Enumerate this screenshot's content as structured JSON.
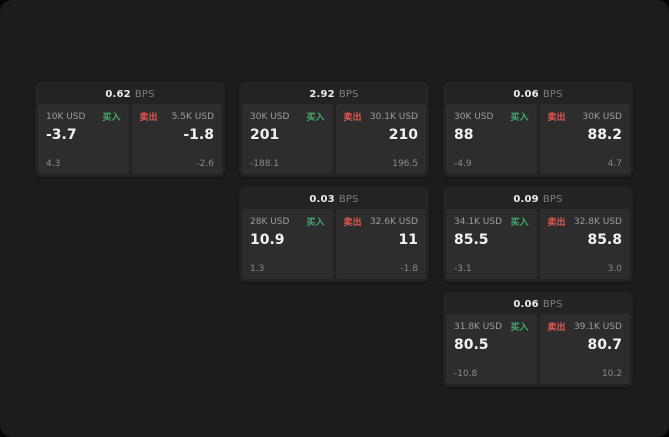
{
  "labels": {
    "bps": "BPS",
    "buy": "买入",
    "sell": "卖出"
  },
  "colors": {
    "buy_green": "#3fae6a",
    "sell_red": "#e05a52",
    "frame_bg": "#1c1c1c",
    "card_bg": "#232323",
    "panel_bg": "#2d2d2d"
  },
  "cards": [
    {
      "bps": "0.62",
      "buy": {
        "amount": "10K USD",
        "price": "-3.7",
        "delta": "4.3"
      },
      "sell": {
        "amount": "5.5K USD",
        "price": "-1.8",
        "delta": "-2.6"
      }
    },
    {
      "bps": "2.92",
      "buy": {
        "amount": "30K USD",
        "price": "201",
        "delta": "-188.1"
      },
      "sell": {
        "amount": "30.1K USD",
        "price": "210",
        "delta": "196.5"
      }
    },
    {
      "bps": "0.06",
      "buy": {
        "amount": "30K USD",
        "price": "88",
        "delta": "-4.9"
      },
      "sell": {
        "amount": "30K USD",
        "price": "88.2",
        "delta": "4.7"
      }
    },
    {
      "bps": "0.03",
      "buy": {
        "amount": "28K USD",
        "price": "10.9",
        "delta": "1.3"
      },
      "sell": {
        "amount": "32.6K USD",
        "price": "11",
        "delta": "-1.8"
      }
    },
    {
      "bps": "0.09",
      "buy": {
        "amount": "34.1K USD",
        "price": "85.5",
        "delta": "-3.1"
      },
      "sell": {
        "amount": "32.8K USD",
        "price": "85.8",
        "delta": "3.0"
      }
    },
    {
      "bps": "0.06",
      "buy": {
        "amount": "31.8K USD",
        "price": "80.5",
        "delta": "-10.8"
      },
      "sell": {
        "amount": "39.1K USD",
        "price": "80.7",
        "delta": "10.2"
      }
    }
  ]
}
